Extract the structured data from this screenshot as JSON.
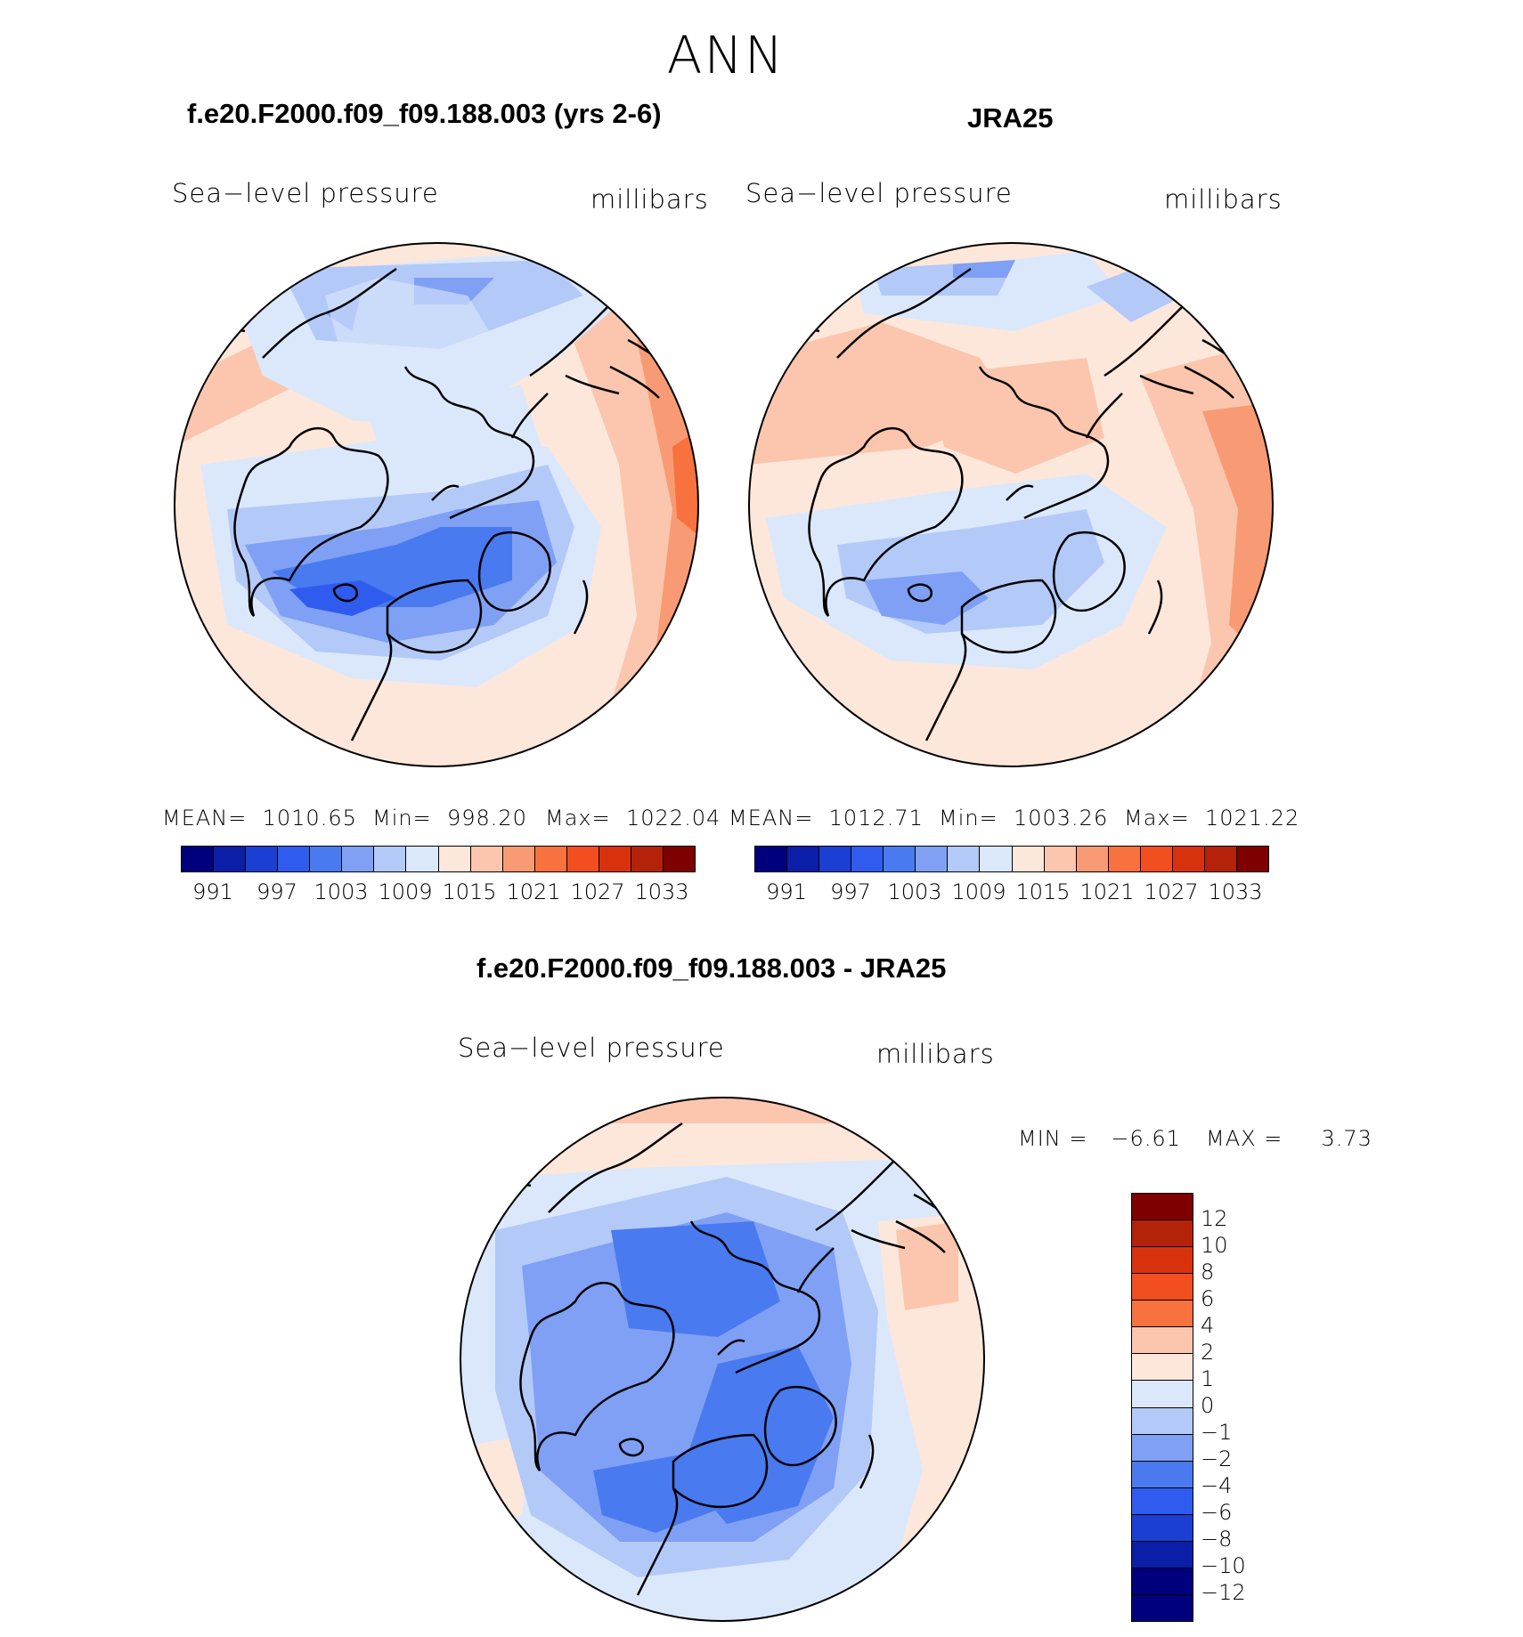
{
  "season": "ANN",
  "panels": {
    "model": {
      "title": "f.e20.F2000.f09_f09.188.003 (yrs 2-6)",
      "variable": "Sea−level pressure",
      "units": "millibars",
      "mean_label": "MEAN=",
      "mean_value": "1010.65",
      "min_label": "Min=",
      "min_value": "998.20",
      "max_label": "Max=",
      "max_value": "1022.04"
    },
    "obs": {
      "title": "JRA25",
      "variable": "Sea−level pressure",
      "units": "millibars",
      "mean_label": "MEAN=",
      "mean_value": "1012.71",
      "min_label": "Min=",
      "min_value": "1003.26",
      "max_label": "Max=",
      "max_value": "1021.22"
    },
    "diff": {
      "title": "f.e20.F2000.f09_f09.188.003 - JRA25",
      "variable": "Sea−level pressure",
      "units": "millibars",
      "min_label": "MIN =",
      "min_value": "−6.61",
      "max_label": "MAX =",
      "max_value": "3.73"
    }
  },
  "colorbar_fields": {
    "ticks": [
      "991",
      "997",
      "1003",
      "1009",
      "1015",
      "1021",
      "1027",
      "1033"
    ],
    "colors": [
      "#00007f",
      "#0a1ea8",
      "#1b3fd2",
      "#2f5cee",
      "#4a7af0",
      "#7fa0f4",
      "#b3c9f8",
      "#dbe8fb",
      "#fde7da",
      "#fbc6ad",
      "#f89b75",
      "#f7723f",
      "#f24e1f",
      "#d8320d",
      "#b42209",
      "#7f0000"
    ]
  },
  "colorbar_diff": {
    "ticks": [
      "12",
      "10",
      "8",
      "6",
      "4",
      "2",
      "1",
      "0",
      "−1",
      "−2",
      "−4",
      "−6",
      "−8",
      "−10",
      "−12"
    ],
    "colors": [
      "#7f0000",
      "#b42209",
      "#d8320d",
      "#f24e1f",
      "#f7723f",
      "#fbc6ad",
      "#fde7da",
      "#dbe8fb",
      "#b3c9f8",
      "#7fa0f4",
      "#4a7af0",
      "#2f5cee",
      "#1b3fd2",
      "#0a1ea8",
      "#00007f",
      "#00007f"
    ]
  }
}
